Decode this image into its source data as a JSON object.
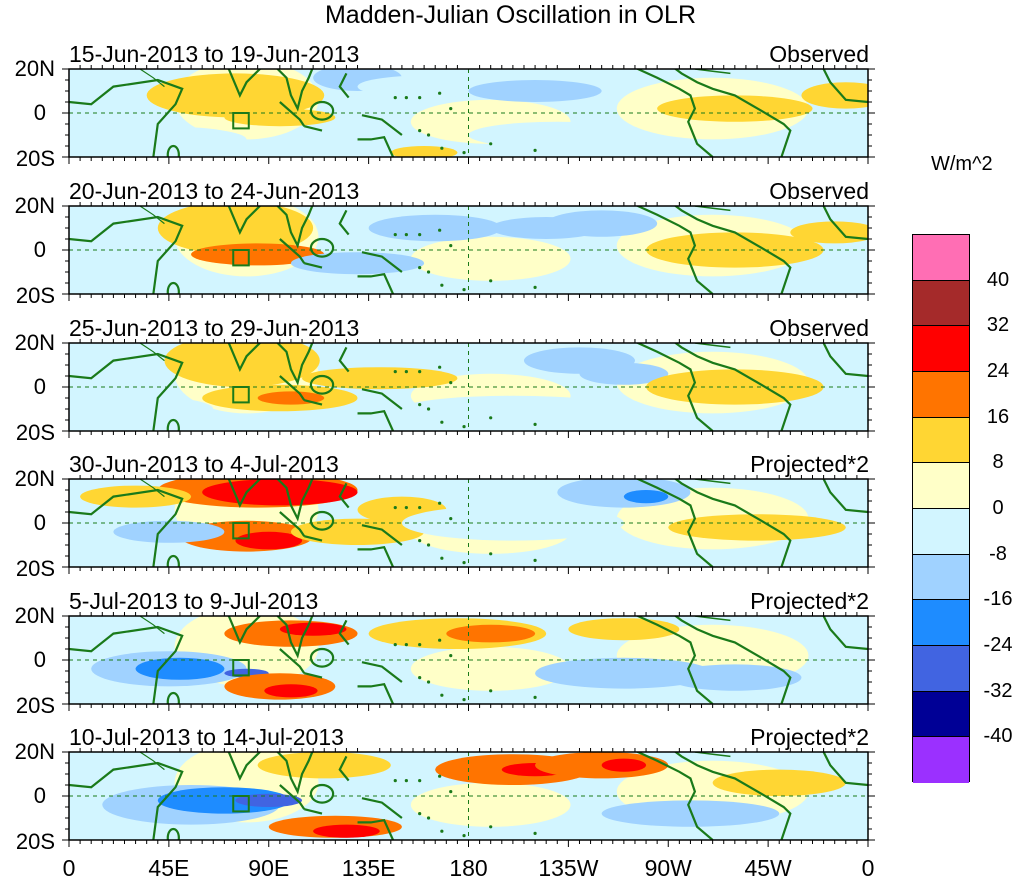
{
  "title": "Madden-Julian Oscillation in OLR",
  "panels": [
    {
      "date_range": "15-Jun-2013 to 19-Jun-2013",
      "type": "Observed"
    },
    {
      "date_range": "20-Jun-2013 to 24-Jun-2013",
      "type": "Observed"
    },
    {
      "date_range": "25-Jun-2013 to 29-Jun-2013",
      "type": "Observed"
    },
    {
      "date_range": "30-Jun-2013 to 4-Jul-2013",
      "type": "Projected*2"
    },
    {
      "date_range": "5-Jul-2013 to 9-Jul-2013",
      "type": "Projected*2"
    },
    {
      "date_range": "10-Jul-2013 to 14-Jul-2013",
      "type": "Projected*2"
    }
  ],
  "y_labels": {
    "north": "20N",
    "equator": "0",
    "south": "20S"
  },
  "x_labels": [
    "0",
    "45E",
    "90E",
    "135E",
    "180",
    "135W",
    "90W",
    "45W",
    "0"
  ],
  "colorbar": {
    "unit": "W/m^2",
    "labels": [
      "40",
      "32",
      "24",
      "16",
      "8",
      "0",
      "-8",
      "-16",
      "-24",
      "-32",
      "-40"
    ],
    "colors": [
      "#ff6eb4",
      "#a52a2a",
      "#ff0000",
      "#ff7400",
      "#ffd633",
      "#ffffc8",
      "#d2f5ff",
      "#a0d2ff",
      "#1e8cff",
      "#4164e1",
      "#000096",
      "#9b30ff"
    ]
  },
  "colors": {
    "land_outline": "#1a7a1a",
    "grid_line": "#1a7a1a"
  },
  "chart_data": {
    "type": "heatmap",
    "title": "Madden-Julian Oscillation in OLR",
    "unit": "W/m^2",
    "levels": [
      -40,
      -32,
      -24,
      -16,
      -8,
      0,
      8,
      16,
      24,
      32,
      40
    ],
    "x_ticks": [
      "0",
      "45E",
      "90E",
      "135E",
      "180",
      "135W",
      "90W",
      "45W",
      "0"
    ],
    "y_ticks": [
      "20N",
      "0",
      "20S"
    ],
    "lon_range": [
      0,
      360
    ],
    "lat_range": [
      -20,
      20
    ]
  }
}
